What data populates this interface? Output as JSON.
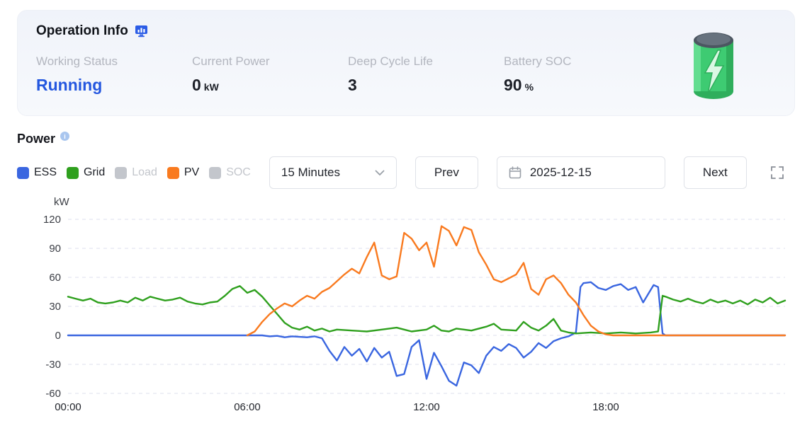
{
  "operation_info": {
    "title": "Operation Info",
    "stats": [
      {
        "label": "Working Status",
        "value": "Running",
        "unit": ""
      },
      {
        "label": "Current Power",
        "value": "0",
        "unit": "kW"
      },
      {
        "label": "Deep Cycle Life",
        "value": "3",
        "unit": ""
      },
      {
        "label": "Battery SOC",
        "value": "90",
        "unit": "%"
      }
    ]
  },
  "power_section": {
    "title": "Power",
    "unit_label": "kW",
    "legend": [
      {
        "label": "ESS",
        "color": "#3a66e0",
        "active": true
      },
      {
        "label": "Grid",
        "color": "#2fa01e",
        "active": true
      },
      {
        "label": "Load",
        "color": "#c9ccd2",
        "active": false
      },
      {
        "label": "PV",
        "color": "#f97a1f",
        "active": true
      },
      {
        "label": "SOC",
        "color": "#c9ccd2",
        "active": false
      }
    ],
    "controls": {
      "interval": "15 Minutes",
      "prev": "Prev",
      "date": "2025-12-15",
      "next": "Next"
    },
    "inactive_color": "#c3c6cc"
  },
  "chart_data": {
    "type": "line",
    "title": "Power",
    "xlabel": "",
    "ylabel": "kW",
    "xlim": [
      0,
      24
    ],
    "ylim": [
      -60,
      120
    ],
    "y_ticks": [
      -60,
      -30,
      0,
      30,
      60,
      90,
      120
    ],
    "x_ticks": [
      {
        "v": 0,
        "label": "00:00"
      },
      {
        "v": 6,
        "label": "06:00"
      },
      {
        "v": 12,
        "label": "12:00"
      },
      {
        "v": 18,
        "label": "18:00"
      }
    ],
    "grid": "horizontal-dashed",
    "legend_position": "top-left",
    "series": [
      {
        "name": "ESS",
        "color": "#3a66e0",
        "points": [
          [
            0,
            0
          ],
          [
            6.5,
            0
          ],
          [
            6.75,
            -1
          ],
          [
            7,
            -0.5
          ],
          [
            7.25,
            -2
          ],
          [
            7.5,
            -1
          ],
          [
            8,
            -2
          ],
          [
            8.25,
            -1
          ],
          [
            8.5,
            -3
          ],
          [
            8.75,
            -16
          ],
          [
            9,
            -26
          ],
          [
            9.25,
            -12
          ],
          [
            9.5,
            -21
          ],
          [
            9.75,
            -14
          ],
          [
            10,
            -27
          ],
          [
            10.25,
            -13
          ],
          [
            10.5,
            -23
          ],
          [
            10.75,
            -17
          ],
          [
            11,
            -42
          ],
          [
            11.25,
            -40
          ],
          [
            11.5,
            -12
          ],
          [
            11.75,
            -5
          ],
          [
            12,
            -45
          ],
          [
            12.25,
            -18
          ],
          [
            12.5,
            -32
          ],
          [
            12.75,
            -47
          ],
          [
            13,
            -52
          ],
          [
            13.25,
            -28
          ],
          [
            13.5,
            -31
          ],
          [
            13.75,
            -39
          ],
          [
            14,
            -21
          ],
          [
            14.25,
            -12
          ],
          [
            14.5,
            -16
          ],
          [
            14.75,
            -9
          ],
          [
            15,
            -13
          ],
          [
            15.25,
            -23
          ],
          [
            15.5,
            -17
          ],
          [
            15.75,
            -8
          ],
          [
            16,
            -13
          ],
          [
            16.25,
            -6
          ],
          [
            16.5,
            -3
          ],
          [
            16.75,
            -1
          ],
          [
            17,
            3
          ],
          [
            17.15,
            50
          ],
          [
            17.25,
            54
          ],
          [
            17.5,
            55
          ],
          [
            17.75,
            49
          ],
          [
            18,
            47
          ],
          [
            18.25,
            51
          ],
          [
            18.5,
            53
          ],
          [
            18.75,
            47
          ],
          [
            19,
            50
          ],
          [
            19.25,
            34
          ],
          [
            19.5,
            47
          ],
          [
            19.6,
            52
          ],
          [
            19.75,
            50
          ],
          [
            19.9,
            2
          ],
          [
            20,
            0
          ],
          [
            24,
            0
          ]
        ]
      },
      {
        "name": "Grid",
        "color": "#2fa01e",
        "points": [
          [
            0,
            40
          ],
          [
            0.25,
            38
          ],
          [
            0.5,
            36
          ],
          [
            0.75,
            38
          ],
          [
            1,
            34
          ],
          [
            1.25,
            33
          ],
          [
            1.5,
            34
          ],
          [
            1.75,
            36
          ],
          [
            2,
            34
          ],
          [
            2.25,
            39
          ],
          [
            2.5,
            36
          ],
          [
            2.75,
            40
          ],
          [
            3,
            38
          ],
          [
            3.25,
            36
          ],
          [
            3.5,
            37
          ],
          [
            3.75,
            39
          ],
          [
            4,
            35
          ],
          [
            4.25,
            33
          ],
          [
            4.5,
            32
          ],
          [
            4.75,
            34
          ],
          [
            5,
            35
          ],
          [
            5.25,
            41
          ],
          [
            5.5,
            48
          ],
          [
            5.75,
            51
          ],
          [
            6,
            44
          ],
          [
            6.25,
            47
          ],
          [
            6.5,
            40
          ],
          [
            6.75,
            31
          ],
          [
            7,
            22
          ],
          [
            7.25,
            13
          ],
          [
            7.5,
            8
          ],
          [
            7.75,
            6
          ],
          [
            8,
            9
          ],
          [
            8.25,
            5
          ],
          [
            8.5,
            7
          ],
          [
            8.75,
            4
          ],
          [
            9,
            6
          ],
          [
            9.5,
            5
          ],
          [
            10,
            4
          ],
          [
            10.5,
            6
          ],
          [
            11,
            8
          ],
          [
            11.25,
            6
          ],
          [
            11.5,
            4
          ],
          [
            12,
            6
          ],
          [
            12.25,
            10
          ],
          [
            12.5,
            5
          ],
          [
            12.75,
            4
          ],
          [
            13,
            7
          ],
          [
            13.5,
            5
          ],
          [
            14,
            9
          ],
          [
            14.25,
            12
          ],
          [
            14.5,
            6
          ],
          [
            15,
            5
          ],
          [
            15.25,
            14
          ],
          [
            15.5,
            8
          ],
          [
            15.75,
            5
          ],
          [
            16,
            10
          ],
          [
            16.25,
            17
          ],
          [
            16.5,
            5
          ],
          [
            16.75,
            3
          ],
          [
            17,
            2
          ],
          [
            17.5,
            3
          ],
          [
            18,
            2
          ],
          [
            18.5,
            3
          ],
          [
            19,
            2
          ],
          [
            19.5,
            3
          ],
          [
            19.75,
            4
          ],
          [
            19.9,
            41
          ],
          [
            20,
            40
          ],
          [
            20.25,
            37
          ],
          [
            20.5,
            35
          ],
          [
            20.75,
            38
          ],
          [
            21,
            35
          ],
          [
            21.25,
            33
          ],
          [
            21.5,
            37
          ],
          [
            21.75,
            34
          ],
          [
            22,
            36
          ],
          [
            22.25,
            33
          ],
          [
            22.5,
            36
          ],
          [
            22.75,
            32
          ],
          [
            23,
            37
          ],
          [
            23.25,
            34
          ],
          [
            23.5,
            39
          ],
          [
            23.75,
            33
          ],
          [
            24,
            36
          ]
        ]
      },
      {
        "name": "PV",
        "color": "#f97a1f",
        "points": [
          [
            6,
            0
          ],
          [
            6.25,
            4
          ],
          [
            6.5,
            14
          ],
          [
            6.75,
            22
          ],
          [
            7,
            28
          ],
          [
            7.25,
            33
          ],
          [
            7.5,
            30
          ],
          [
            7.75,
            36
          ],
          [
            8,
            41
          ],
          [
            8.25,
            38
          ],
          [
            8.5,
            45
          ],
          [
            8.75,
            49
          ],
          [
            9,
            56
          ],
          [
            9.25,
            63
          ],
          [
            9.5,
            69
          ],
          [
            9.75,
            64
          ],
          [
            10,
            81
          ],
          [
            10.25,
            96
          ],
          [
            10.5,
            62
          ],
          [
            10.75,
            58
          ],
          [
            11,
            61
          ],
          [
            11.25,
            106
          ],
          [
            11.5,
            100
          ],
          [
            11.75,
            88
          ],
          [
            12,
            96
          ],
          [
            12.25,
            71
          ],
          [
            12.5,
            113
          ],
          [
            12.75,
            108
          ],
          [
            13,
            93
          ],
          [
            13.25,
            112
          ],
          [
            13.5,
            109
          ],
          [
            13.75,
            86
          ],
          [
            14,
            73
          ],
          [
            14.25,
            58
          ],
          [
            14.5,
            55
          ],
          [
            14.75,
            59
          ],
          [
            15,
            63
          ],
          [
            15.25,
            75
          ],
          [
            15.5,
            48
          ],
          [
            15.75,
            42
          ],
          [
            16,
            58
          ],
          [
            16.25,
            62
          ],
          [
            16.5,
            54
          ],
          [
            16.75,
            42
          ],
          [
            17,
            34
          ],
          [
            17.25,
            21
          ],
          [
            17.5,
            10
          ],
          [
            17.75,
            4
          ],
          [
            18,
            1
          ],
          [
            18.25,
            0
          ],
          [
            24,
            0
          ]
        ]
      }
    ]
  }
}
